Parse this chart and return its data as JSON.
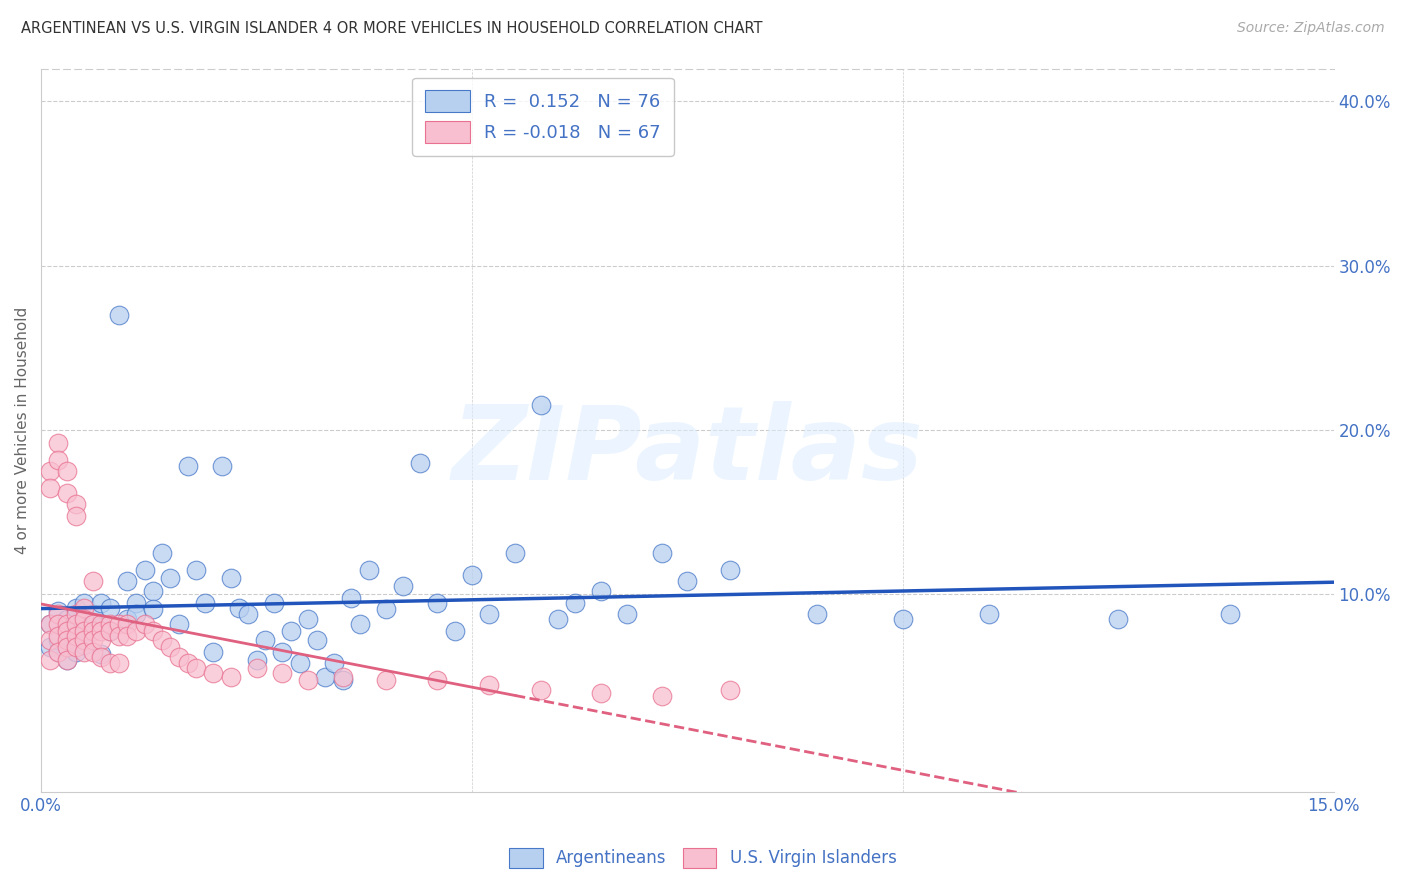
{
  "title": "ARGENTINEAN VS U.S. VIRGIN ISLANDER 4 OR MORE VEHICLES IN HOUSEHOLD CORRELATION CHART",
  "source": "Source: ZipAtlas.com",
  "ylabel": "4 or more Vehicles in Household",
  "xlim": [
    0.0,
    0.15
  ],
  "ylim": [
    -0.02,
    0.42
  ],
  "xticks": [
    0.0,
    0.05,
    0.1,
    0.15
  ],
  "xticklabels": [
    "0.0%",
    "",
    "",
    "15.0%"
  ],
  "yticks_right": [
    0.1,
    0.2,
    0.3,
    0.4
  ],
  "yticklabels_right": [
    "10.0%",
    "20.0%",
    "30.0%",
    "40.0%"
  ],
  "blue_R": 0.152,
  "blue_N": 76,
  "pink_R": -0.018,
  "pink_N": 67,
  "blue_color": "#b8d0f0",
  "pink_color": "#f8bfd0",
  "blue_edge_color": "#4878c8",
  "pink_edge_color": "#e87090",
  "blue_line_color": "#2255bb",
  "pink_line_color": "#e06080",
  "axis_color": "#4472c4",
  "grid_color": "#cccccc",
  "watermark": "ZIPatlas",
  "background_color": "#ffffff",
  "blue_x": [
    0.001,
    0.001,
    0.002,
    0.002,
    0.002,
    0.003,
    0.003,
    0.003,
    0.004,
    0.004,
    0.004,
    0.004,
    0.005,
    0.005,
    0.005,
    0.006,
    0.006,
    0.007,
    0.007,
    0.007,
    0.008,
    0.008,
    0.009,
    0.01,
    0.01,
    0.011,
    0.011,
    0.012,
    0.013,
    0.013,
    0.014,
    0.015,
    0.016,
    0.017,
    0.018,
    0.019,
    0.02,
    0.021,
    0.022,
    0.023,
    0.024,
    0.025,
    0.026,
    0.027,
    0.028,
    0.029,
    0.03,
    0.031,
    0.032,
    0.033,
    0.034,
    0.035,
    0.036,
    0.037,
    0.038,
    0.04,
    0.042,
    0.044,
    0.046,
    0.048,
    0.05,
    0.052,
    0.055,
    0.058,
    0.06,
    0.062,
    0.065,
    0.068,
    0.072,
    0.075,
    0.08,
    0.09,
    0.1,
    0.11,
    0.125,
    0.138
  ],
  "blue_y": [
    0.082,
    0.068,
    0.09,
    0.072,
    0.065,
    0.085,
    0.078,
    0.06,
    0.092,
    0.071,
    0.076,
    0.065,
    0.083,
    0.069,
    0.095,
    0.088,
    0.078,
    0.08,
    0.064,
    0.095,
    0.092,
    0.078,
    0.27,
    0.108,
    0.085,
    0.095,
    0.088,
    0.115,
    0.102,
    0.091,
    0.125,
    0.11,
    0.082,
    0.178,
    0.115,
    0.095,
    0.065,
    0.178,
    0.11,
    0.092,
    0.088,
    0.06,
    0.072,
    0.095,
    0.065,
    0.078,
    0.058,
    0.085,
    0.072,
    0.05,
    0.058,
    0.048,
    0.098,
    0.082,
    0.115,
    0.091,
    0.105,
    0.18,
    0.095,
    0.078,
    0.112,
    0.088,
    0.125,
    0.215,
    0.085,
    0.095,
    0.102,
    0.088,
    0.125,
    0.108,
    0.115,
    0.088,
    0.085,
    0.088,
    0.085,
    0.088
  ],
  "pink_x": [
    0.001,
    0.001,
    0.001,
    0.001,
    0.001,
    0.002,
    0.002,
    0.002,
    0.002,
    0.002,
    0.002,
    0.003,
    0.003,
    0.003,
    0.003,
    0.003,
    0.003,
    0.003,
    0.004,
    0.004,
    0.004,
    0.004,
    0.004,
    0.004,
    0.005,
    0.005,
    0.005,
    0.005,
    0.005,
    0.006,
    0.006,
    0.006,
    0.006,
    0.006,
    0.007,
    0.007,
    0.007,
    0.007,
    0.008,
    0.008,
    0.008,
    0.009,
    0.009,
    0.009,
    0.01,
    0.01,
    0.011,
    0.012,
    0.013,
    0.014,
    0.015,
    0.016,
    0.017,
    0.018,
    0.02,
    0.022,
    0.025,
    0.028,
    0.031,
    0.035,
    0.04,
    0.046,
    0.052,
    0.058,
    0.065,
    0.072,
    0.08
  ],
  "pink_y": [
    0.175,
    0.165,
    0.082,
    0.072,
    0.06,
    0.192,
    0.182,
    0.088,
    0.082,
    0.075,
    0.065,
    0.175,
    0.162,
    0.082,
    0.078,
    0.072,
    0.068,
    0.06,
    0.155,
    0.148,
    0.088,
    0.082,
    0.075,
    0.068,
    0.092,
    0.085,
    0.078,
    0.072,
    0.065,
    0.108,
    0.082,
    0.078,
    0.072,
    0.065,
    0.082,
    0.078,
    0.072,
    0.062,
    0.082,
    0.078,
    0.058,
    0.082,
    0.075,
    0.058,
    0.082,
    0.075,
    0.078,
    0.082,
    0.078,
    0.072,
    0.068,
    0.062,
    0.058,
    0.055,
    0.052,
    0.05,
    0.055,
    0.052,
    0.048,
    0.05,
    0.048,
    0.048,
    0.045,
    0.042,
    0.04,
    0.038,
    0.042
  ]
}
